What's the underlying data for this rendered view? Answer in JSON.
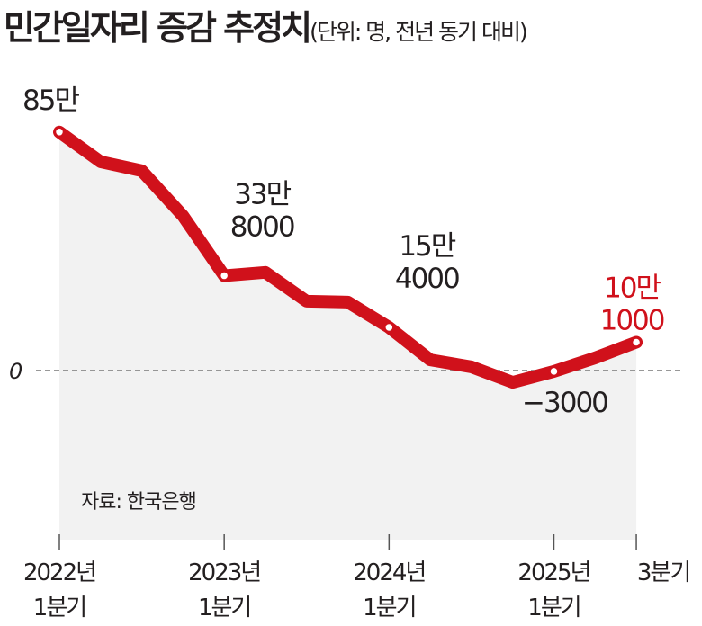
{
  "title": "민간일자리 증감 추정치",
  "unit": "(단위: 명, 전년 동기 대비)",
  "source": "자료: 한국은행",
  "colors": {
    "line": "#d0111b",
    "fill": "#f2f2f2",
    "text": "#231f20",
    "highlight": "#d0111b"
  },
  "chart_data": {
    "type": "line",
    "title": "민간일자리 증감 추정치",
    "ylabel": "명 (전년 동기 대비)",
    "value_unit": "만 명",
    "x": [
      "2022Q1",
      "2022Q2",
      "2022Q3",
      "2022Q4",
      "2023Q1",
      "2023Q2",
      "2023Q3",
      "2023Q4",
      "2024Q1",
      "2024Q2",
      "2024Q3",
      "2024Q4",
      "2025Q1",
      "2025Q2",
      "2025Q3"
    ],
    "values": [
      85,
      74.4,
      71.2,
      55.1,
      33.8,
      35,
      24.7,
      24.4,
      15.4,
      3.8,
      1.3,
      -4.2,
      -0.3,
      4.5,
      10.1
    ],
    "zero_label": "0",
    "grid": false,
    "ticks": [
      {
        "index": 0,
        "line1": "2022년",
        "line2": "1분기"
      },
      {
        "index": 4,
        "line1": "2023년",
        "line2": "1분기"
      },
      {
        "index": 8,
        "line1": "2024년",
        "line2": "1분기"
      },
      {
        "index": 12,
        "line1": "2025년",
        "line2": "1분기"
      },
      {
        "index": 14,
        "line1": "3분기",
        "line2": ""
      }
    ],
    "annotations": [
      {
        "index": 0,
        "lines": [
          "85만"
        ],
        "highlight": false
      },
      {
        "index": 4,
        "lines": [
          "33만",
          "8000"
        ],
        "highlight": false
      },
      {
        "index": 8,
        "lines": [
          "15만",
          "4000"
        ],
        "highlight": false
      },
      {
        "index": 12,
        "lines": [
          "−3000"
        ],
        "highlight": false
      },
      {
        "index": 14,
        "lines": [
          "10만",
          "1000"
        ],
        "highlight": true
      }
    ]
  }
}
